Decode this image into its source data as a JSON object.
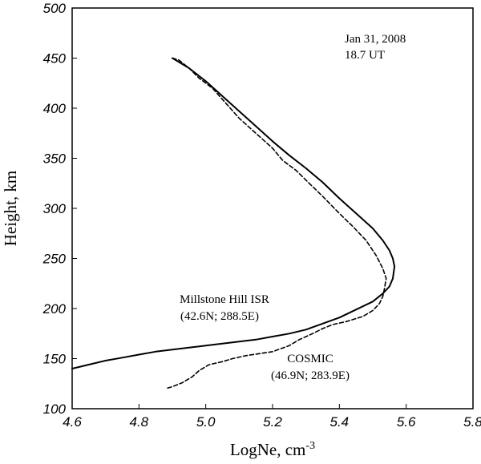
{
  "chart_data": {
    "type": "line",
    "title": "",
    "xlabel": "LogNe, cm",
    "xlabel_superscript": "-3",
    "ylabel": "Height, km",
    "xlim": [
      4.6,
      5.8
    ],
    "ylim": [
      100,
      500
    ],
    "xticks": [
      "4.6",
      "4.8",
      "5.0",
      "5.2",
      "5.4",
      "5.6",
      "5.8"
    ],
    "yticks": [
      "100",
      "150",
      "200",
      "250",
      "300",
      "350",
      "400",
      "450",
      "500"
    ],
    "grid": false,
    "legend": "none",
    "annotations": {
      "date": "Jan 31, 2008",
      "time": "18.7 UT",
      "isr_name": "Millstone Hill ISR",
      "isr_coords": "(42.6N; 288.5E)",
      "cosmic_name": "COSMIC",
      "cosmic_coords": "(46.9N; 283.9E)"
    },
    "series": [
      {
        "style": "solid",
        "x": [
          4.9,
          4.95,
          5.0,
          5.05,
          5.1,
          5.15,
          5.2,
          5.25,
          5.3,
          5.35,
          5.4,
          5.45,
          5.5,
          5.53,
          5.55,
          5.56,
          5.565,
          5.56,
          5.55,
          5.53,
          5.5,
          5.45,
          5.4,
          5.35,
          5.3,
          5.25,
          5.2,
          5.15,
          5.1,
          5.05,
          5.0,
          4.95,
          4.9,
          4.85,
          4.8,
          4.75,
          4.7,
          4.65,
          4.6
        ],
        "y": [
          450,
          440,
          427,
          412,
          397,
          382,
          367,
          353,
          340,
          326,
          310,
          295,
          280,
          268,
          258,
          250,
          242,
          230,
          222,
          215,
          207,
          199,
          191,
          185,
          179,
          175,
          172,
          169,
          167,
          165,
          163,
          161,
          159,
          157,
          154,
          151,
          148,
          144,
          140
        ]
      },
      {
        "style": "dashed",
        "x": [
          4.9,
          4.92,
          4.95,
          4.98,
          5.02,
          5.06,
          5.1,
          5.15,
          5.2,
          5.23,
          5.27,
          5.31,
          5.35,
          5.4,
          5.44,
          5.48,
          5.51,
          5.53,
          5.54,
          5.535,
          5.53,
          5.52,
          5.5,
          5.47,
          5.42,
          5.38,
          5.35,
          5.32,
          5.28,
          5.25,
          5.2,
          5.12,
          5.08,
          5.05,
          5.01,
          4.98,
          4.96,
          4.93,
          4.9,
          4.88
        ],
        "y": [
          450,
          448,
          440,
          430,
          420,
          405,
          390,
          375,
          360,
          348,
          338,
          325,
          312,
          295,
          282,
          268,
          253,
          240,
          230,
          220,
          212,
          205,
          198,
          192,
          187,
          184,
          180,
          175,
          169,
          163,
          157,
          153,
          150,
          147,
          144,
          138,
          132,
          126,
          122,
          120
        ]
      }
    ]
  }
}
